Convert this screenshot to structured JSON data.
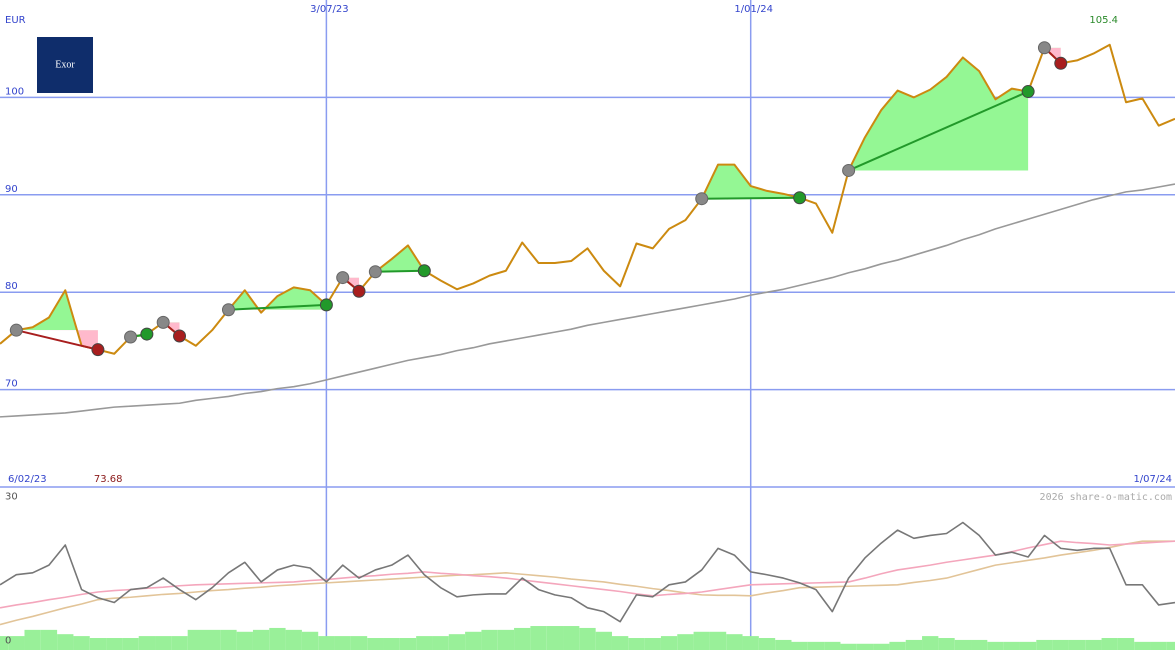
{
  "logo": "Exor",
  "chart_data": [
    {
      "type": "line",
      "unit": "EUR",
      "categories": [
        "6/02/23",
        null,
        null,
        null,
        null,
        null,
        null,
        null,
        null,
        null,
        null,
        null,
        null,
        null,
        null,
        null,
        null,
        null,
        null,
        null,
        "3/07/23",
        null,
        null,
        null,
        null,
        null,
        null,
        null,
        null,
        null,
        null,
        null,
        null,
        null,
        null,
        null,
        null,
        null,
        null,
        null,
        null,
        null,
        null,
        null,
        null,
        null,
        "1/01/24",
        null,
        null,
        null,
        null,
        null,
        null,
        null,
        null,
        null,
        null,
        null,
        null,
        null,
        null,
        null,
        null,
        null,
        null,
        null,
        null,
        null,
        null,
        null,
        null,
        null,
        "1/07/24"
      ],
      "ylim": [
        60,
        110
      ],
      "yticks": [
        70,
        80,
        90,
        100
      ],
      "grid": true,
      "grid_color": "#8a9cf0",
      "label_color": "#3344cc",
      "series": [
        {
          "color": "#cc8a10",
          "values": [
            74.7,
            76.1,
            76.4,
            77.4,
            80.2,
            74.5,
            74.1,
            73.68,
            75.4,
            75.7,
            76.9,
            75.5,
            74.5,
            76.1,
            78.2,
            80.2,
            77.9,
            79.6,
            80.5,
            80.2,
            78.7,
            81.5,
            80.1,
            82.1,
            83.4,
            84.8,
            82.2,
            81.2,
            80.3,
            80.9,
            81.7,
            82.2,
            85.1,
            83.0,
            83.0,
            83.2,
            84.5,
            82.2,
            80.6,
            85.0,
            84.5,
            86.5,
            87.4,
            89.6,
            93.1,
            93.1,
            90.9,
            90.4,
            90.1,
            89.7,
            89.1,
            86.1,
            92.5,
            95.9,
            98.7,
            100.7,
            100.0,
            100.8,
            102.1,
            104.1,
            102.7,
            99.8,
            100.9,
            100.6,
            105.1,
            103.5,
            103.8,
            104.5,
            105.4,
            99.5,
            99.9,
            97.1,
            97.8
          ]
        },
        {
          "color": "#999999",
          "values": [
            67.2,
            67.3,
            67.4,
            67.5,
            67.6,
            67.8,
            68.0,
            68.2,
            68.3,
            68.4,
            68.5,
            68.6,
            68.9,
            69.1,
            69.3,
            69.6,
            69.8,
            70.1,
            70.3,
            70.6,
            71.0,
            71.4,
            71.8,
            72.2,
            72.6,
            73.0,
            73.3,
            73.6,
            74.0,
            74.3,
            74.7,
            75.0,
            75.3,
            75.6,
            75.9,
            76.2,
            76.6,
            76.9,
            77.2,
            77.5,
            77.8,
            78.1,
            78.4,
            78.7,
            79.0,
            79.3,
            79.7,
            80.0,
            80.3,
            80.7,
            81.1,
            81.5,
            82.0,
            82.4,
            82.9,
            83.3,
            83.8,
            84.3,
            84.8,
            85.4,
            85.9,
            86.5,
            87.0,
            87.5,
            88.0,
            88.5,
            89.0,
            89.5,
            89.9,
            90.3,
            90.5,
            90.8,
            91.1
          ]
        }
      ],
      "entries": {
        "color": "#888888",
        "values": [
          null,
          76.1,
          null,
          null,
          null,
          null,
          null,
          null,
          75.4,
          null,
          76.9,
          null,
          null,
          null,
          78.2,
          null,
          null,
          null,
          null,
          null,
          null,
          81.5,
          null,
          82.1,
          null,
          null,
          null,
          null,
          null,
          null,
          null,
          null,
          null,
          null,
          null,
          null,
          null,
          null,
          null,
          null,
          null,
          null,
          null,
          89.6,
          null,
          null,
          null,
          null,
          null,
          null,
          null,
          null,
          92.5,
          null,
          null,
          null,
          null,
          null,
          null,
          null,
          null,
          null,
          null,
          null,
          105.1,
          null,
          null,
          null,
          null,
          null,
          null,
          null,
          null
        ]
      },
      "exits": {
        "win_color": "#22992a",
        "loss_color": "#a81e1e",
        "values": [
          null,
          null,
          null,
          null,
          null,
          null,
          74.1,
          null,
          null,
          75.7,
          null,
          75.5,
          null,
          null,
          null,
          null,
          null,
          null,
          null,
          null,
          78.7,
          null,
          80.1,
          null,
          null,
          null,
          82.2,
          null,
          null,
          null,
          null,
          null,
          null,
          null,
          null,
          null,
          null,
          null,
          null,
          null,
          null,
          null,
          null,
          null,
          null,
          null,
          null,
          null,
          null,
          89.7,
          null,
          null,
          null,
          null,
          null,
          null,
          null,
          null,
          null,
          null,
          null,
          null,
          null,
          100.6,
          null,
          103.5,
          null,
          null,
          null,
          null,
          null,
          null,
          null
        ]
      },
      "gain_fill": "#94f794",
      "loss_fill": "#ffb9cc",
      "max_label": 105.4,
      "max_color": "#2a8a2a",
      "min_label": 73.68,
      "min_color": "#8b1a1a"
    },
    {
      "type": "line",
      "ylim": [
        -2,
        32
      ],
      "yticks": [
        0,
        30
      ],
      "label_color": "#555555",
      "watermark": "2026 share-o-matic.com",
      "series": [
        {
          "color": "#777777",
          "values": [
            11.6,
            13.7,
            14.1,
            15.7,
            19.9,
            10.6,
            8.9,
            7.9,
            10.6,
            11.0,
            13.0,
            10.6,
            8.5,
            11.0,
            14.1,
            16.3,
            12.2,
            14.7,
            15.7,
            15.1,
            12.2,
            15.7,
            13.0,
            14.7,
            15.7,
            17.8,
            13.7,
            11.0,
            9.1,
            9.5,
            9.7,
            9.7,
            13.0,
            10.6,
            9.5,
            8.9,
            6.8,
            6.0,
            3.9,
            9.5,
            9.1,
            11.6,
            12.2,
            14.7,
            19.2,
            17.8,
            14.3,
            13.7,
            13.0,
            12.0,
            10.6,
            6.0,
            13.0,
            17.2,
            20.3,
            23.0,
            21.3,
            21.9,
            22.3,
            24.6,
            21.9,
            17.8,
            18.4,
            17.4,
            21.9,
            19.2,
            18.8,
            19.2,
            19.2,
            11.6,
            11.6,
            7.4,
            7.9
          ]
        },
        {
          "color": "#f4a6bc",
          "values": [
            6.8,
            7.4,
            7.9,
            8.5,
            9.0,
            9.6,
            10.1,
            10.4,
            10.6,
            10.9,
            11.1,
            11.4,
            11.6,
            11.7,
            11.8,
            11.9,
            12.0,
            12.1,
            12.2,
            12.5,
            12.7,
            13.0,
            13.3,
            13.5,
            13.8,
            14.0,
            14.3,
            14.0,
            13.8,
            13.5,
            13.3,
            13.0,
            12.6,
            12.2,
            11.8,
            11.4,
            11.0,
            10.6,
            10.2,
            9.7,
            9.3,
            9.6,
            9.8,
            10.1,
            10.6,
            11.1,
            11.6,
            11.7,
            11.8,
            11.9,
            12.0,
            12.1,
            12.2,
            13.0,
            13.9,
            14.7,
            15.2,
            15.7,
            16.3,
            16.8,
            17.3,
            17.8,
            18.5,
            19.3,
            20.0,
            20.7,
            20.4,
            20.2,
            19.9,
            20.1,
            20.3,
            20.5,
            20.7
          ]
        },
        {
          "color": "#e2c498",
          "values": [
            3.3,
            4.2,
            5.0,
            5.9,
            6.8,
            7.6,
            8.5,
            8.8,
            9.0,
            9.3,
            9.6,
            9.8,
            10.1,
            10.4,
            10.6,
            10.9,
            11.1,
            11.4,
            11.6,
            11.8,
            12.0,
            12.2,
            12.4,
            12.6,
            12.8,
            13.0,
            13.2,
            13.4,
            13.6,
            13.7,
            13.9,
            14.1,
            13.8,
            13.5,
            13.2,
            12.8,
            12.5,
            12.2,
            11.7,
            11.3,
            10.8,
            10.4,
            9.9,
            9.5,
            9.4,
            9.4,
            9.3,
            9.9,
            10.4,
            11.0,
            11.1,
            11.2,
            11.3,
            11.4,
            11.5,
            11.6,
            12.1,
            12.5,
            13.0,
            13.9,
            14.8,
            15.7,
            16.2,
            16.7,
            17.2,
            17.8,
            18.3,
            18.8,
            19.4,
            20.1,
            20.7,
            20.7,
            20.7
          ]
        }
      ],
      "volume": {
        "color": "#99f099",
        "values": [
          2.9,
          2.9,
          4.2,
          4.2,
          3.3,
          2.9,
          2.5,
          2.5,
          2.5,
          2.9,
          2.9,
          2.9,
          4.2,
          4.2,
          4.2,
          3.8,
          4.2,
          4.6,
          4.2,
          3.8,
          2.9,
          2.9,
          2.9,
          2.5,
          2.5,
          2.5,
          2.9,
          2.9,
          3.3,
          3.8,
          4.2,
          4.2,
          4.6,
          5.0,
          5.0,
          5.0,
          4.6,
          3.8,
          2.9,
          2.5,
          2.5,
          2.9,
          3.3,
          3.8,
          3.8,
          3.3,
          2.9,
          2.5,
          2.1,
          1.7,
          1.7,
          1.7,
          1.3,
          1.3,
          1.3,
          1.7,
          2.1,
          2.9,
          2.5,
          2.1,
          2.1,
          1.7,
          1.7,
          1.7,
          2.1,
          2.1,
          2.1,
          2.1,
          2.5,
          2.5,
          1.7,
          1.7,
          1.7
        ]
      }
    }
  ]
}
